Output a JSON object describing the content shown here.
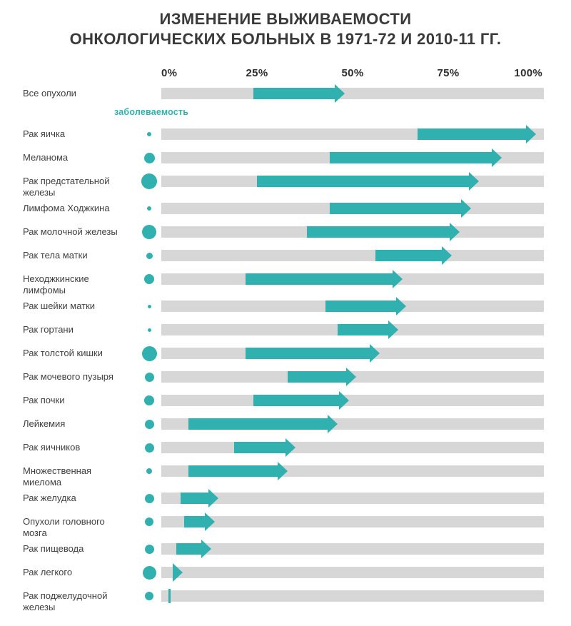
{
  "header": {
    "title_line1": "ИЗМЕНЕНИЕ ВЫЖИВАЕМОСТИ",
    "title_line2": "ОНКОЛОГИЧЕСКИХ БОЛЬНЫХ В 1971-72 И 2010-11 ГГ."
  },
  "colors": {
    "accent_teal": "#30b0ae",
    "track_gray": "#d7d7d7",
    "title_text": "#3a3a3a",
    "label_text": "#3f3f3f"
  },
  "chart_data": {
    "type": "bar",
    "subtype": "arrow-change-dumbbell",
    "title": "Изменение выживаемости онкологических больных в 1971-72 и 2010-11 гг.",
    "x_ticks": [
      "0%",
      "25%",
      "50%",
      "75%",
      "100%"
    ],
    "xlim": [
      0,
      100
    ],
    "unit": "%",
    "legend_dot": "заболеваемость",
    "rows": [
      {
        "label": "Все опухоли",
        "from_pct": 24,
        "to_pct": 48,
        "dot_size_px": 0
      },
      {
        "label": "Рак яичка",
        "from_pct": 67,
        "to_pct": 98,
        "dot_size_px": 6
      },
      {
        "label": "Меланома",
        "from_pct": 44,
        "to_pct": 89,
        "dot_size_px": 15
      },
      {
        "label": "Рак предстательной\nжелезы",
        "from_pct": 25,
        "to_pct": 83,
        "dot_size_px": 22
      },
      {
        "label": "Лимфома Ходжкина",
        "from_pct": 44,
        "to_pct": 81,
        "dot_size_px": 6
      },
      {
        "label": "Рак молочной железы",
        "from_pct": 38,
        "to_pct": 78,
        "dot_size_px": 20
      },
      {
        "label": "Рак тела матки",
        "from_pct": 56,
        "to_pct": 76,
        "dot_size_px": 9
      },
      {
        "label": "Неходжкинские\nлимфомы",
        "from_pct": 22,
        "to_pct": 63,
        "dot_size_px": 14
      },
      {
        "label": "Рак шейки матки",
        "from_pct": 43,
        "to_pct": 64,
        "dot_size_px": 5
      },
      {
        "label": "Рак гортани",
        "from_pct": 46,
        "to_pct": 62,
        "dot_size_px": 5
      },
      {
        "label": "Рак толстой кишки",
        "from_pct": 22,
        "to_pct": 57,
        "dot_size_px": 21
      },
      {
        "label": "Рак мочевого пузыря",
        "from_pct": 33,
        "to_pct": 51,
        "dot_size_px": 13
      },
      {
        "label": "Рак почки",
        "from_pct": 24,
        "to_pct": 49,
        "dot_size_px": 14
      },
      {
        "label": "Лейкемия",
        "from_pct": 7,
        "to_pct": 46,
        "dot_size_px": 13
      },
      {
        "label": "Рак яичников",
        "from_pct": 19,
        "to_pct": 35,
        "dot_size_px": 13
      },
      {
        "label": "Множественная\nмиелома",
        "from_pct": 7,
        "to_pct": 33,
        "dot_size_px": 8
      },
      {
        "label": "Рак желудка",
        "from_pct": 5,
        "to_pct": 15,
        "dot_size_px": 13
      },
      {
        "label": "Опухоли головного\nмозга",
        "from_pct": 6,
        "to_pct": 14,
        "dot_size_px": 12
      },
      {
        "label": "Рак пищевода",
        "from_pct": 4,
        "to_pct": 13,
        "dot_size_px": 13
      },
      {
        "label": "Рак легкого",
        "from_pct": 3,
        "to_pct": 5,
        "dot_size_px": 19
      },
      {
        "label": "Рак поджелудочной\nжелезы",
        "from_pct": 2,
        "to_pct": 2,
        "dot_size_px": 12
      }
    ]
  }
}
